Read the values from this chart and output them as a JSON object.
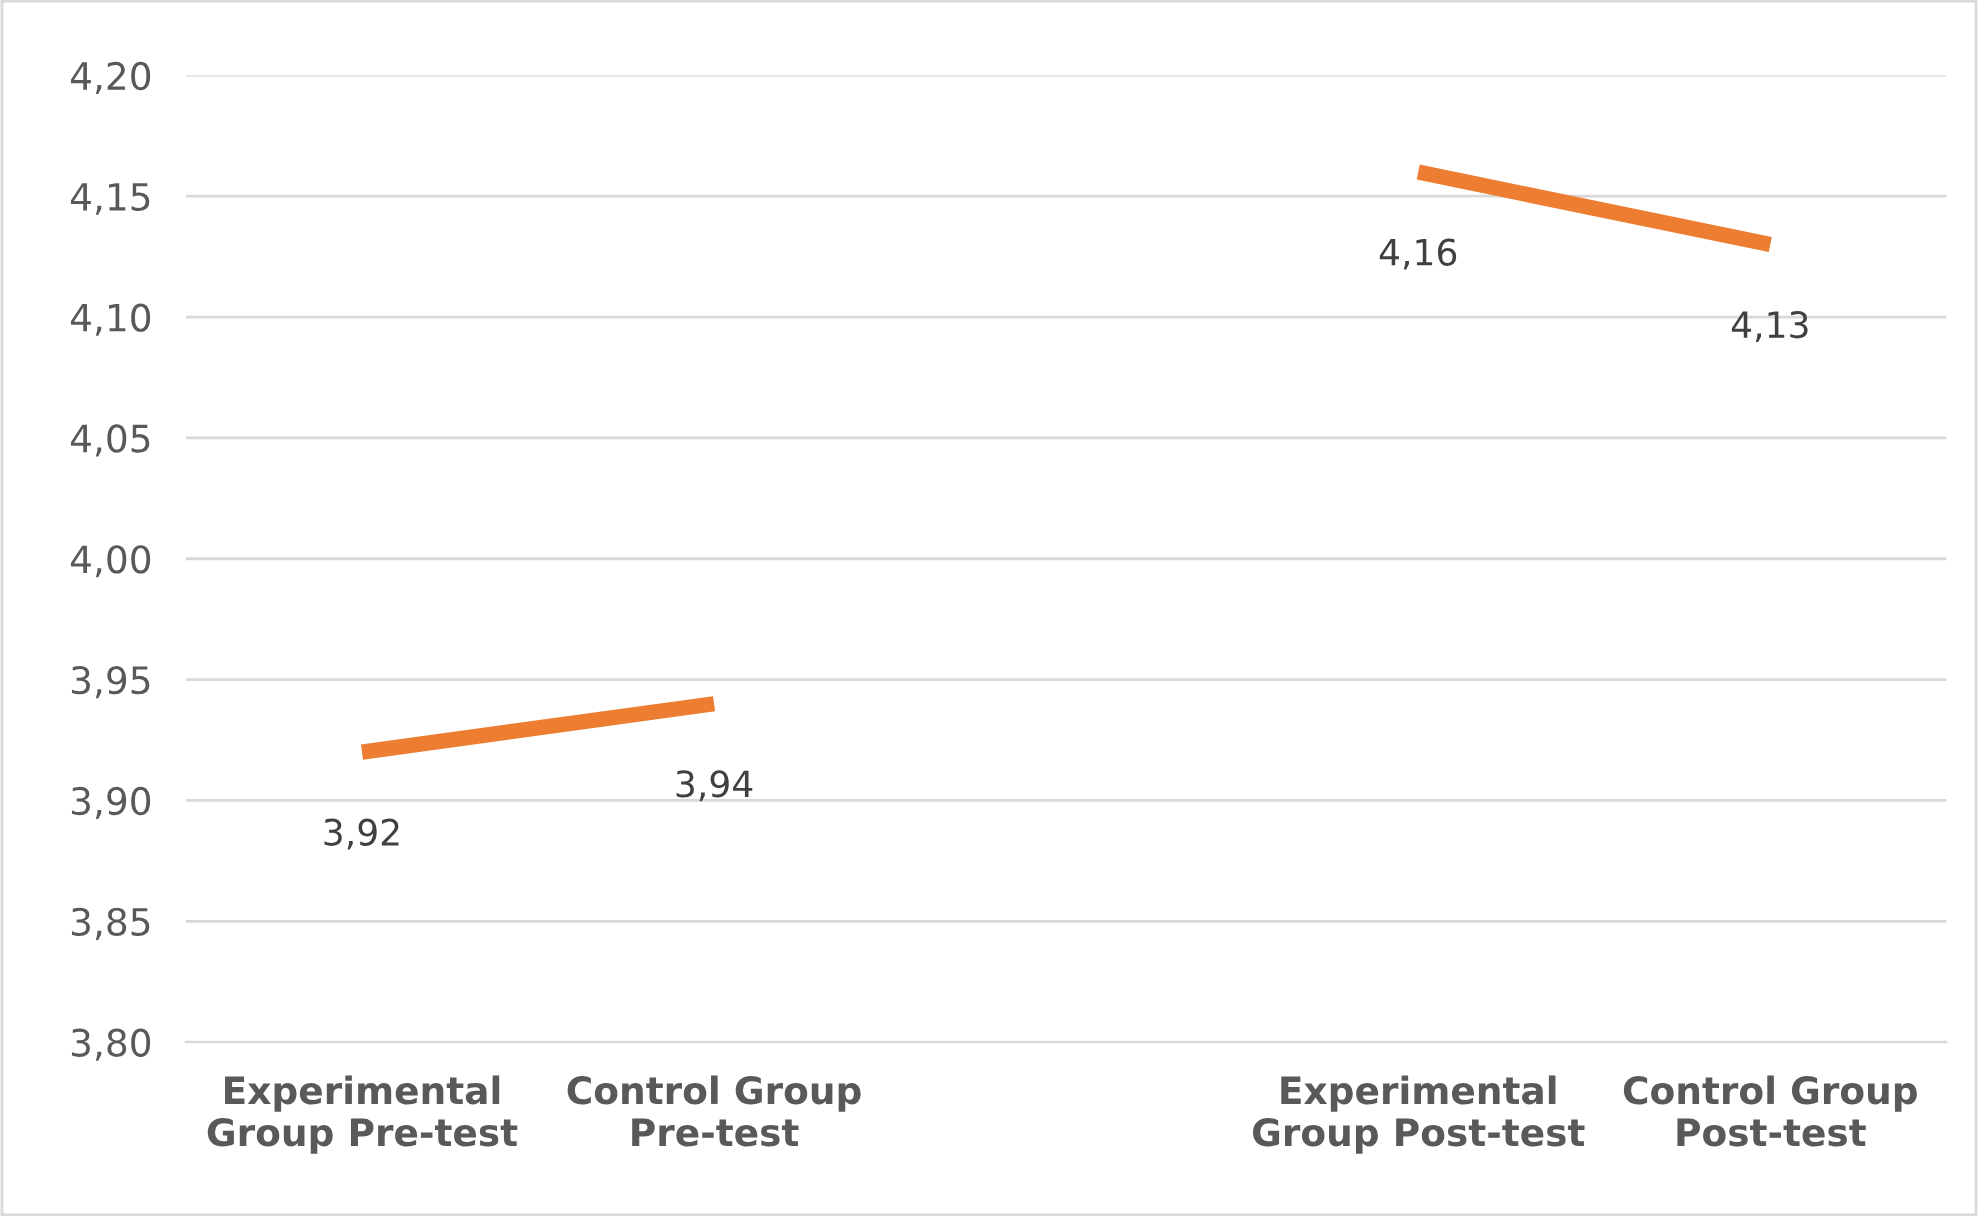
{
  "chart_data": {
    "type": "line",
    "categories": [
      "Experimental\nGroup Pre-test",
      "Control Group\nPre-test",
      null,
      "Experimental\nGroup Post-test",
      "Control Group\nPost-test"
    ],
    "series": [
      {
        "color": "#ed7d31",
        "values": [
          3.92,
          3.94,
          null,
          4.16,
          4.13
        ]
      }
    ],
    "value_labels": [
      "3,92",
      "3,94",
      null,
      "4,16",
      "4,13"
    ],
    "ylim": [
      3.8,
      4.2
    ],
    "yticks": [
      {
        "value": 3.8,
        "label": "3,80"
      },
      {
        "value": 3.85,
        "label": "3,85"
      },
      {
        "value": 3.9,
        "label": "3,90"
      },
      {
        "value": 3.95,
        "label": "3,95"
      },
      {
        "value": 4.0,
        "label": "4,00"
      },
      {
        "value": 4.05,
        "label": "4,05"
      },
      {
        "value": 4.1,
        "label": "4,10"
      },
      {
        "value": 4.15,
        "label": "4,15"
      },
      {
        "value": 4.2,
        "label": "4,20"
      }
    ],
    "grid": "y",
    "legend": false,
    "marker": "none",
    "line_style": "solid"
  }
}
